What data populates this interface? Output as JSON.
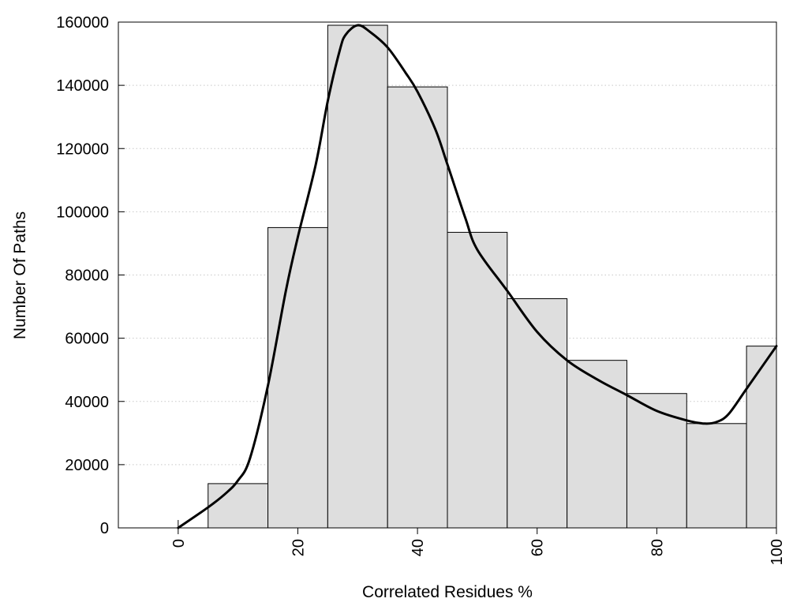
{
  "chart_data": {
    "type": "bar",
    "title": "",
    "xlabel": "Correlated Residues %",
    "ylabel": "Number Of Paths",
    "xlim": [
      -10,
      100
    ],
    "ylim": [
      0,
      160000
    ],
    "x_ticks": [
      0,
      20,
      40,
      60,
      80,
      100
    ],
    "y_ticks": [
      0,
      20000,
      40000,
      60000,
      80000,
      100000,
      120000,
      140000,
      160000
    ],
    "grid": "horizontal dotted",
    "bar_color": "#dedede",
    "bars": [
      {
        "x": 0,
        "value": 0
      },
      {
        "x": 10,
        "value": 14000
      },
      {
        "x": 20,
        "value": 95000
      },
      {
        "x": 30,
        "value": 159000
      },
      {
        "x": 40,
        "value": 139500
      },
      {
        "x": 50,
        "value": 93500
      },
      {
        "x": 60,
        "value": 72500
      },
      {
        "x": 70,
        "value": 53000
      },
      {
        "x": 80,
        "value": 42500
      },
      {
        "x": 90,
        "value": 33000
      },
      {
        "x": 100,
        "value": 57500
      }
    ],
    "curve": {
      "x": [
        0,
        5,
        8,
        10,
        12,
        15,
        18,
        20,
        23,
        25,
        27,
        28,
        30,
        32,
        35,
        38,
        40,
        43,
        45,
        48,
        50,
        55,
        60,
        65,
        70,
        75,
        80,
        85,
        88,
        90,
        92,
        95,
        100
      ],
      "y": [
        0,
        6500,
        11000,
        15000,
        22000,
        45000,
        75000,
        92000,
        115000,
        135000,
        151000,
        156000,
        159000,
        157000,
        152000,
        144000,
        138000,
        126000,
        115000,
        98000,
        88000,
        75000,
        62000,
        53000,
        47000,
        42000,
        37000,
        34000,
        33000,
        33500,
        36000,
        44000,
        57500
      ]
    }
  }
}
